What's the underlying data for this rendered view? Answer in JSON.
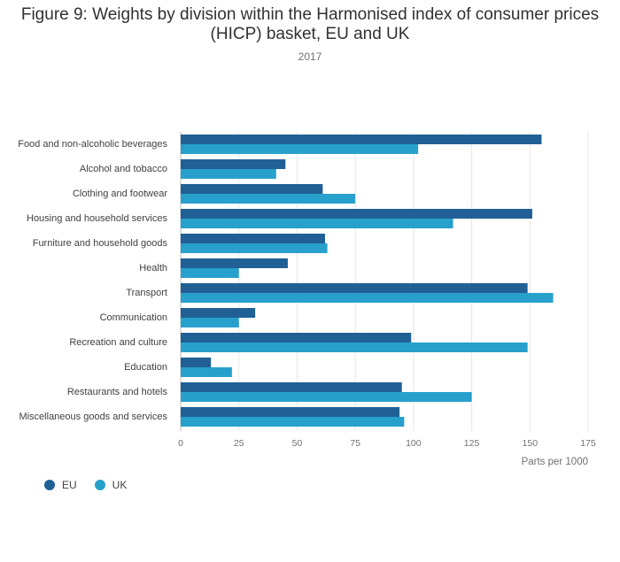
{
  "chart_data": {
    "type": "bar",
    "orientation": "horizontal",
    "title": "Figure 9: Weights by division within the Harmonised index of consumer prices (HICP) basket, EU and UK",
    "subtitle": "2017",
    "xlabel": "Parts per 1000",
    "ylabel": "",
    "xlim": [
      0,
      175
    ],
    "ticks": [
      0,
      25,
      50,
      75,
      100,
      125,
      150,
      175
    ],
    "grid": true,
    "legend_position": "bottom-left",
    "categories": [
      "Food and non-alcoholic beverages",
      "Alcohol and tobacco",
      "Clothing and footwear",
      "Housing and household services",
      "Furniture and household goods",
      "Health",
      "Transport",
      "Communication",
      "Recreation and culture",
      "Education",
      "Restaurants and hotels",
      "Miscellaneous goods and services"
    ],
    "series": [
      {
        "name": "EU",
        "color": "#206095",
        "values": [
          155,
          45,
          61,
          151,
          62,
          46,
          149,
          32,
          99,
          13,
          95,
          94
        ]
      },
      {
        "name": "UK",
        "color": "#27a0cc",
        "values": [
          102,
          41,
          75,
          117,
          63,
          25,
          160,
          25,
          149,
          22,
          125,
          96
        ]
      }
    ]
  }
}
